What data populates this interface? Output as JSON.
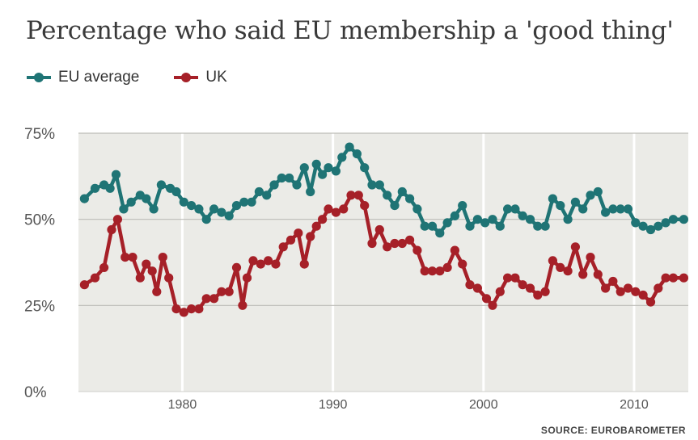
{
  "chart_data": {
    "type": "line",
    "title": "Percentage who said EU membership a 'good thing'",
    "source": "SOURCE: EUROBAROMETER",
    "xlim": [
      1973.1,
      2013.6
    ],
    "ylim": [
      0,
      75
    ],
    "y_ticks": [
      {
        "value": 0,
        "label": "0%"
      },
      {
        "value": 25,
        "label": "25%"
      },
      {
        "value": 50,
        "label": "50%"
      },
      {
        "value": 75,
        "label": "75%"
      }
    ],
    "x_ticks": [
      {
        "value": 1980,
        "label": "1980"
      },
      {
        "value": 1990,
        "label": "1990"
      },
      {
        "value": 2000,
        "label": "2000"
      },
      {
        "value": 2010,
        "label": "2010"
      }
    ],
    "grid": true,
    "legend_position": "top-left",
    "series": [
      {
        "name": "EU average",
        "color": "#1f7475",
        "points": [
          [
            1973.5,
            56
          ],
          [
            1974.2,
            59
          ],
          [
            1974.8,
            60
          ],
          [
            1975.2,
            59
          ],
          [
            1975.6,
            63
          ],
          [
            1976.1,
            53
          ],
          [
            1976.6,
            55
          ],
          [
            1977.2,
            57
          ],
          [
            1977.6,
            56
          ],
          [
            1978.1,
            53
          ],
          [
            1978.6,
            60
          ],
          [
            1979.2,
            59
          ],
          [
            1979.6,
            58
          ],
          [
            1980.1,
            55
          ],
          [
            1980.6,
            54
          ],
          [
            1981.1,
            53
          ],
          [
            1981.6,
            50
          ],
          [
            1982.1,
            53
          ],
          [
            1982.6,
            52
          ],
          [
            1983.1,
            51
          ],
          [
            1983.6,
            54
          ],
          [
            1984.1,
            55
          ],
          [
            1984.6,
            55
          ],
          [
            1985.1,
            58
          ],
          [
            1985.6,
            57
          ],
          [
            1986.1,
            60
          ],
          [
            1986.6,
            62
          ],
          [
            1987.1,
            62
          ],
          [
            1987.6,
            60
          ],
          [
            1988.1,
            65
          ],
          [
            1988.5,
            58
          ],
          [
            1988.9,
            66
          ],
          [
            1989.3,
            63
          ],
          [
            1989.7,
            65
          ],
          [
            1990.2,
            64
          ],
          [
            1990.6,
            68
          ],
          [
            1991.1,
            71
          ],
          [
            1991.6,
            69
          ],
          [
            1992.1,
            65
          ],
          [
            1992.6,
            60
          ],
          [
            1993.1,
            60
          ],
          [
            1993.6,
            57
          ],
          [
            1994.1,
            54
          ],
          [
            1994.6,
            58
          ],
          [
            1995.1,
            56
          ],
          [
            1995.6,
            53
          ],
          [
            1996.1,
            48
          ],
          [
            1996.6,
            48
          ],
          [
            1997.1,
            46
          ],
          [
            1997.6,
            49
          ],
          [
            1998.1,
            51
          ],
          [
            1998.6,
            54
          ],
          [
            1999.1,
            48
          ],
          [
            1999.6,
            50
          ],
          [
            2000.1,
            49
          ],
          [
            2000.6,
            50
          ],
          [
            2001.1,
            48
          ],
          [
            2001.6,
            53
          ],
          [
            2002.1,
            53
          ],
          [
            2002.6,
            51
          ],
          [
            2003.1,
            50
          ],
          [
            2003.6,
            48
          ],
          [
            2004.1,
            48
          ],
          [
            2004.6,
            56
          ],
          [
            2005.1,
            54
          ],
          [
            2005.6,
            50
          ],
          [
            2006.1,
            55
          ],
          [
            2006.6,
            53
          ],
          [
            2007.1,
            57
          ],
          [
            2007.6,
            58
          ],
          [
            2008.1,
            52
          ],
          [
            2008.6,
            53
          ],
          [
            2009.1,
            53
          ],
          [
            2009.6,
            53
          ],
          [
            2010.1,
            49
          ],
          [
            2010.6,
            48
          ],
          [
            2011.1,
            47
          ],
          [
            2011.6,
            48
          ],
          [
            2012.1,
            49
          ],
          [
            2012.6,
            50
          ],
          [
            2013.3,
            50
          ]
        ]
      },
      {
        "name": "UK",
        "color": "#a62028",
        "points": [
          [
            1973.5,
            31
          ],
          [
            1974.2,
            33
          ],
          [
            1974.8,
            36
          ],
          [
            1975.3,
            47
          ],
          [
            1975.7,
            50
          ],
          [
            1976.2,
            39
          ],
          [
            1976.7,
            39
          ],
          [
            1977.2,
            33
          ],
          [
            1977.6,
            37
          ],
          [
            1978.0,
            35
          ],
          [
            1978.3,
            29
          ],
          [
            1978.7,
            39
          ],
          [
            1979.1,
            33
          ],
          [
            1979.6,
            24
          ],
          [
            1980.1,
            23
          ],
          [
            1980.6,
            24
          ],
          [
            1981.1,
            24
          ],
          [
            1981.6,
            27
          ],
          [
            1982.1,
            27
          ],
          [
            1982.6,
            29
          ],
          [
            1983.1,
            29
          ],
          [
            1983.6,
            36
          ],
          [
            1984.0,
            25
          ],
          [
            1984.3,
            33
          ],
          [
            1984.7,
            38
          ],
          [
            1985.2,
            37
          ],
          [
            1985.7,
            38
          ],
          [
            1986.2,
            37
          ],
          [
            1986.7,
            42
          ],
          [
            1987.2,
            44
          ],
          [
            1987.7,
            46
          ],
          [
            1988.1,
            37
          ],
          [
            1988.5,
            45
          ],
          [
            1988.9,
            48
          ],
          [
            1989.3,
            50
          ],
          [
            1989.7,
            53
          ],
          [
            1990.2,
            52
          ],
          [
            1990.7,
            53
          ],
          [
            1991.2,
            57
          ],
          [
            1991.7,
            57
          ],
          [
            1992.1,
            54
          ],
          [
            1992.6,
            43
          ],
          [
            1993.1,
            47
          ],
          [
            1993.6,
            42
          ],
          [
            1994.1,
            43
          ],
          [
            1994.6,
            43
          ],
          [
            1995.1,
            44
          ],
          [
            1995.6,
            41
          ],
          [
            1996.1,
            35
          ],
          [
            1996.6,
            35
          ],
          [
            1997.1,
            35
          ],
          [
            1997.6,
            36
          ],
          [
            1998.1,
            41
          ],
          [
            1998.6,
            37
          ],
          [
            1999.1,
            31
          ],
          [
            1999.6,
            30
          ],
          [
            2000.2,
            27
          ],
          [
            2000.6,
            25
          ],
          [
            2001.1,
            29
          ],
          [
            2001.6,
            33
          ],
          [
            2002.1,
            33
          ],
          [
            2002.6,
            31
          ],
          [
            2003.1,
            30
          ],
          [
            2003.6,
            28
          ],
          [
            2004.1,
            29
          ],
          [
            2004.6,
            38
          ],
          [
            2005.1,
            36
          ],
          [
            2005.6,
            35
          ],
          [
            2006.1,
            42
          ],
          [
            2006.6,
            34
          ],
          [
            2007.1,
            39
          ],
          [
            2007.6,
            34
          ],
          [
            2008.1,
            30
          ],
          [
            2008.6,
            32
          ],
          [
            2009.1,
            29
          ],
          [
            2009.6,
            30
          ],
          [
            2010.1,
            29
          ],
          [
            2010.6,
            28
          ],
          [
            2011.1,
            26
          ],
          [
            2011.6,
            30
          ],
          [
            2012.1,
            33
          ],
          [
            2012.6,
            33
          ],
          [
            2013.3,
            33
          ]
        ]
      }
    ]
  }
}
